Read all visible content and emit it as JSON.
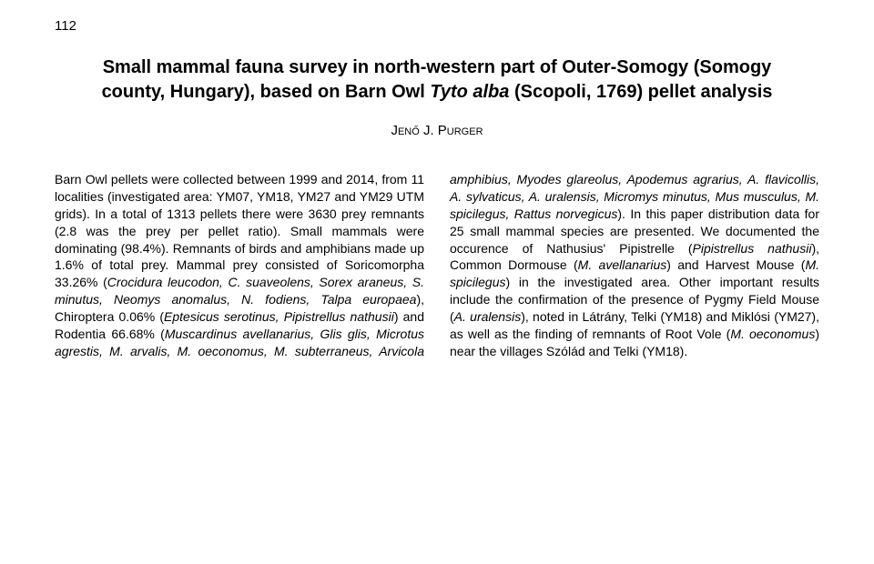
{
  "page_number": "112",
  "title_pre": "Small mammal fauna survey in north-western part of Outer-Somogy (Somogy county, Hungary), based on Barn Owl ",
  "title_species": "Tyto alba",
  "title_post": " (Scopoli, 1769) pellet analysis",
  "author": "Jenő J. Purger",
  "abstract_before_italic1": "Barn Owl pellets were collected between 1999 and 2014, from 11 localities (investigated area: YM07, YM18, YM27 and YM29 UTM grids). In a total of 1313 pellets there were 3630 prey remnants (2.8 was the prey per pellet ratio). Small mammals were dominating (98.4%). Remnants of birds and amphibians made up 1.6% of total prey. Mammal prey consisted of Soricomorpha 33.26% (",
  "sp_crocidura": "Crocidura leucodon, C. suaveolens, Sorex araneus, S. minutus, Neomys anomalus, N. fodiens, Talpa europaea",
  "abstract_mid1": "), Chiroptera 0.06% (",
  "sp_eptesicus": "Eptesicus serotinus, Pipistrellus nathusii",
  "abstract_mid2": ") and Rodentia 66.68% (",
  "sp_rodentia": "Muscardinus avellanarius, Glis glis, Microtus agrestis, M. arvalis, M. oeconomus, M. subterraneus, Arvicola amphibius, Myodes glareolus, Apodemus agrarius, A. flavicollis, A. sylvaticus, A. uralensis, Micromys minutus, Mus musculus, M. spicilegus, Rattus norvegicus",
  "abstract_mid3": "). In this paper distribution data for 25 small mammal species are presented. We documented the occurence of Nathusius' Pipistrelle (",
  "sp_pip": "Pipistrellus nathusii",
  "abstract_mid4": "), Common Dormouse (",
  "sp_avell": "M. avellanarius",
  "abstract_mid5": ") and Harvest Mouse (",
  "sp_spic": "M. spicilegus",
  "abstract_mid6": ") in the investigated area. Other important results include the confirmation of the presence of Pygmy Field Mouse (",
  "sp_ural": "A. uralensis",
  "abstract_mid7": "), noted in Látrány, Telki (YM18) and Miklósi (YM27), as well as the finding of remnants of Root Vole (",
  "sp_oec": "M. oeconomus",
  "abstract_end": ") near the villages Szólád and Telki (YM18).",
  "fontsize_title": 20,
  "fontsize_body": 14,
  "bg_color": "#ffffff",
  "text_color": "#000000"
}
